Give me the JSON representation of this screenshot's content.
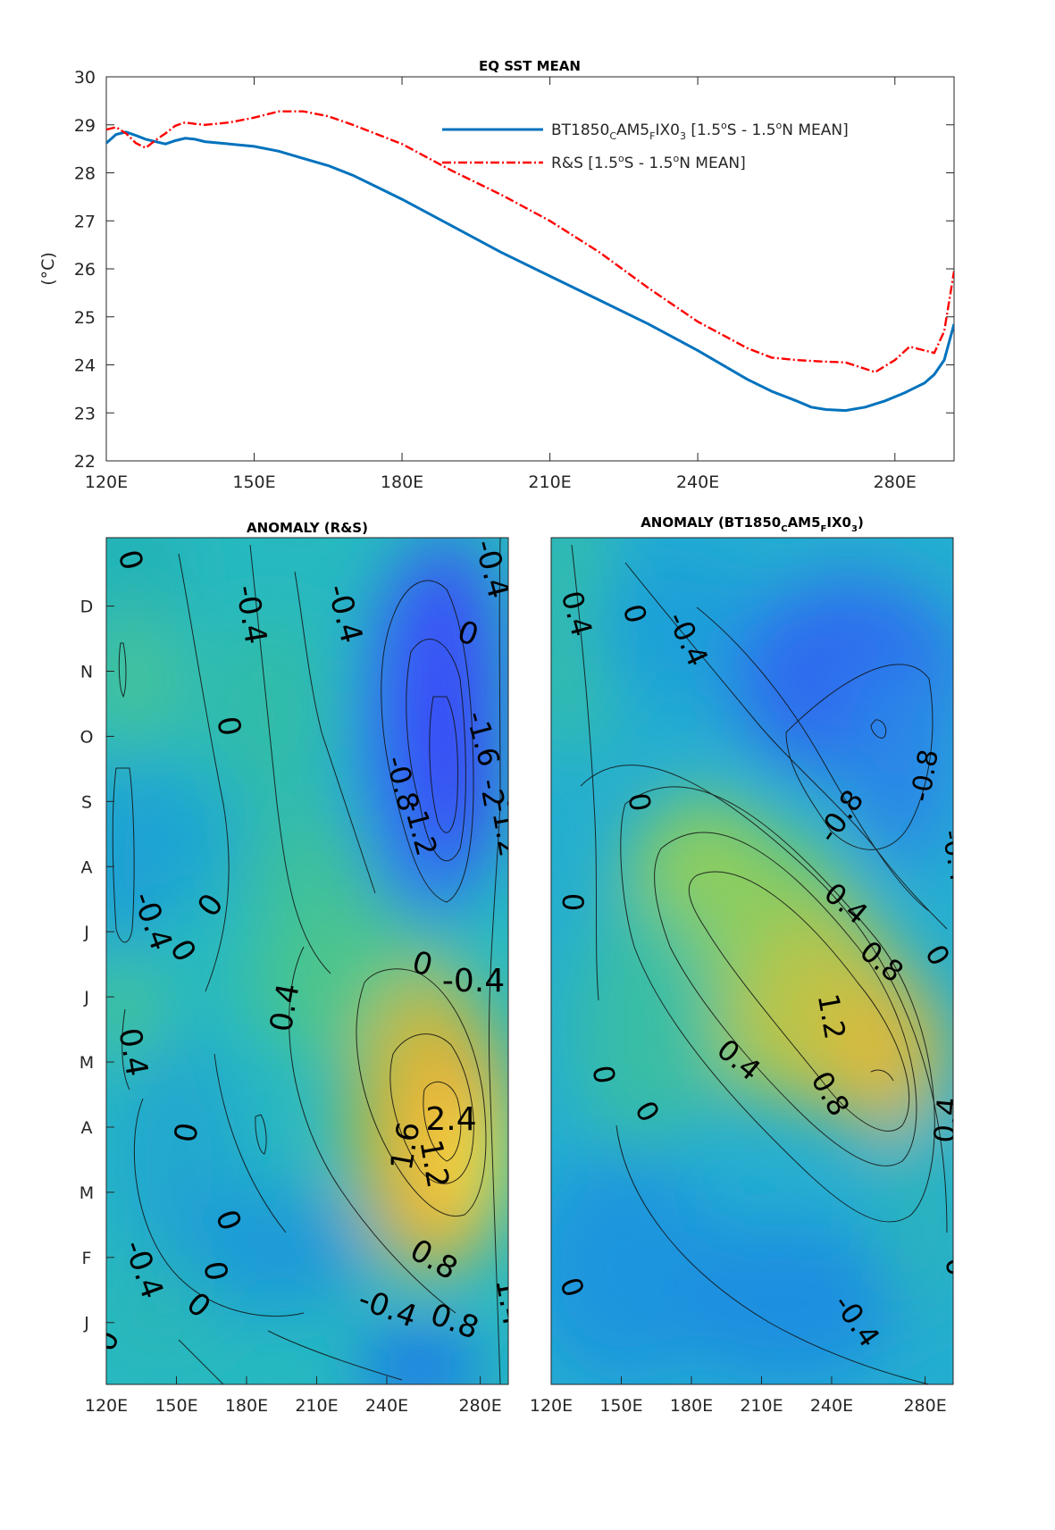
{
  "chart_data": [
    {
      "type": "line",
      "title": "EQ SST MEAN",
      "ylabel": "(°C)",
      "xlim": [
        120,
        292
      ],
      "ylim": [
        22,
        30
      ],
      "xticks": [
        120,
        150,
        180,
        210,
        240,
        280
      ],
      "xtick_labels": [
        "120E",
        "150E",
        "180E",
        "210E",
        "240E",
        "280E"
      ],
      "yticks": [
        22,
        23,
        24,
        25,
        26,
        27,
        28,
        29,
        30
      ],
      "legend_position": "top-right",
      "series": [
        {
          "name": "BT1850_CAM5_FIX0_3 [1.5°S - 1.5°N MEAN]",
          "color": "#0072BD",
          "style": "solid",
          "x": [
            120,
            122,
            124,
            126,
            128,
            130,
            132,
            134,
            136,
            138,
            140,
            145,
            150,
            155,
            160,
            165,
            170,
            175,
            180,
            190,
            200,
            210,
            220,
            230,
            240,
            250,
            255,
            260,
            263,
            266,
            270,
            274,
            278,
            282,
            286,
            288,
            290,
            292
          ],
          "y": [
            28.62,
            28.8,
            28.85,
            28.78,
            28.7,
            28.65,
            28.6,
            28.67,
            28.72,
            28.7,
            28.65,
            28.6,
            28.55,
            28.45,
            28.3,
            28.15,
            27.95,
            27.7,
            27.45,
            26.9,
            26.35,
            25.85,
            25.35,
            24.85,
            24.3,
            23.7,
            23.45,
            23.25,
            23.12,
            23.07,
            23.05,
            23.12,
            23.25,
            23.42,
            23.62,
            23.8,
            24.1,
            24.85
          ]
        },
        {
          "name": "R&S [1.5°S - 1.5°N MEAN]",
          "color": "#ff0000",
          "style": "dash-dot",
          "x": [
            120,
            122,
            124,
            126,
            128,
            130,
            132,
            134,
            136,
            138,
            140,
            145,
            150,
            155,
            160,
            165,
            170,
            175,
            180,
            190,
            200,
            210,
            220,
            230,
            240,
            250,
            255,
            260,
            265,
            270,
            273,
            276,
            280,
            283,
            286,
            288,
            290,
            292
          ],
          "y": [
            28.9,
            28.95,
            28.82,
            28.62,
            28.52,
            28.68,
            28.82,
            28.98,
            29.05,
            29.02,
            29.0,
            29.05,
            29.15,
            29.28,
            29.28,
            29.18,
            29.0,
            28.8,
            28.6,
            28.05,
            27.55,
            27.0,
            26.35,
            25.6,
            24.9,
            24.35,
            24.15,
            24.1,
            24.07,
            24.05,
            23.95,
            23.85,
            24.1,
            24.38,
            24.3,
            24.25,
            24.7,
            25.95
          ]
        }
      ]
    },
    {
      "type": "heatmap",
      "title": "ANOMALY (R&S)",
      "xlim": [
        120,
        292
      ],
      "xticks": [
        120,
        150,
        180,
        210,
        240,
        280
      ],
      "xtick_labels": [
        "120E",
        "150E",
        "180E",
        "210E",
        "240E",
        "280E"
      ],
      "ytick_labels": [
        "J",
        "F",
        "M",
        "A",
        "M",
        "J",
        "J",
        "A",
        "S",
        "O",
        "N",
        "D"
      ],
      "colorscale": "parula",
      "clim": [
        -2.4,
        2.8
      ],
      "contour_levels": [
        -2,
        -1.6,
        -1.2,
        -0.8,
        -0.4,
        0,
        0.4,
        0.8,
        1.2,
        1.6,
        2,
        2.4
      ],
      "contour_labels": [
        "0",
        "0",
        "-0.4",
        "-0.4",
        "0",
        "0",
        "-0.4",
        "-0.4",
        "0",
        "-0.8",
        "-1.2",
        "-1.6",
        "-2",
        "-0.8",
        "-1.2",
        "0",
        "0",
        "0",
        "0",
        "-0.4",
        "0.4",
        "0.4",
        "0",
        "1.6",
        "2.4",
        "1.2",
        "2",
        "0.8",
        "-0.4",
        "0.8",
        "0",
        "0",
        "-0.4",
        "0",
        "0",
        "1.4"
      ]
    },
    {
      "type": "heatmap",
      "title": "ANOMALY (BT1850_CAM5_FIX0_3)",
      "xlim": [
        120,
        292
      ],
      "xticks": [
        120,
        150,
        180,
        210,
        240,
        280
      ],
      "xtick_labels": [
        "120E",
        "150E",
        "180E",
        "210E",
        "240E",
        "280E"
      ],
      "colorscale": "parula",
      "clim": [
        -2.4,
        2.8
      ],
      "contour_levels": [
        -1.2,
        -0.8,
        -0.4,
        0,
        0.4,
        0.8,
        1.2
      ],
      "contour_labels": [
        "0.4",
        "0",
        "-0.4",
        "-0.8",
        "-0.8",
        "0",
        "-0.4",
        "0",
        "0.4",
        "0.8",
        "0",
        "1.2",
        "0.4",
        "0.8",
        "0",
        "0",
        "0.4",
        "0",
        "-0.4",
        "0"
      ]
    }
  ]
}
